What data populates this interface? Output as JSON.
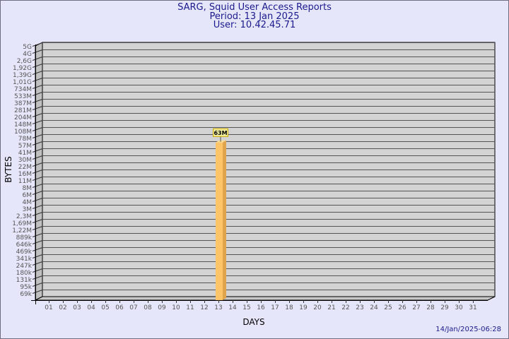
{
  "header": {
    "title": "SARG, Squid User Access Reports",
    "period": "Period: 13 Jan 2025",
    "user": "User: 10.42.45.71"
  },
  "footer": {
    "timestamp": "14/Jan/2025-06:28"
  },
  "chart_data": {
    "type": "bar",
    "style": "3d",
    "xlabel": "DAYS",
    "ylabel": "BYTES",
    "yscale": "log",
    "grid": true,
    "x_ticks": [
      "01",
      "02",
      "03",
      "04",
      "05",
      "06",
      "07",
      "08",
      "09",
      "10",
      "11",
      "12",
      "13",
      "14",
      "15",
      "16",
      "17",
      "18",
      "19",
      "20",
      "21",
      "22",
      "23",
      "24",
      "25",
      "26",
      "27",
      "28",
      "29",
      "30",
      "31"
    ],
    "y_ticks": [
      "5G",
      "4G",
      "2,6G",
      "1,92G",
      "1,39G",
      "1,01G",
      "734M",
      "533M",
      "387M",
      "281M",
      "204M",
      "148M",
      "108M",
      "78M",
      "57M",
      "41M",
      "30M",
      "22M",
      "16M",
      "11M",
      "8M",
      "6M",
      "4M",
      "3M",
      "2,3M",
      "1,69M",
      "1,22M",
      "889k",
      "646k",
      "469k",
      "341k",
      "247k",
      "180k",
      "131k",
      "95k",
      "69k"
    ],
    "bars": [
      {
        "day": "13",
        "value": 63000000,
        "label": "63M"
      }
    ],
    "colors": {
      "bar": "#fdc468",
      "bar_side": "#e0a44c",
      "bar_top": "#fedc8c",
      "plot": "#d3d3d3",
      "label_bg": "#f5f0a0",
      "label_border": "#c8a800",
      "text": "#1a1a8c"
    }
  }
}
